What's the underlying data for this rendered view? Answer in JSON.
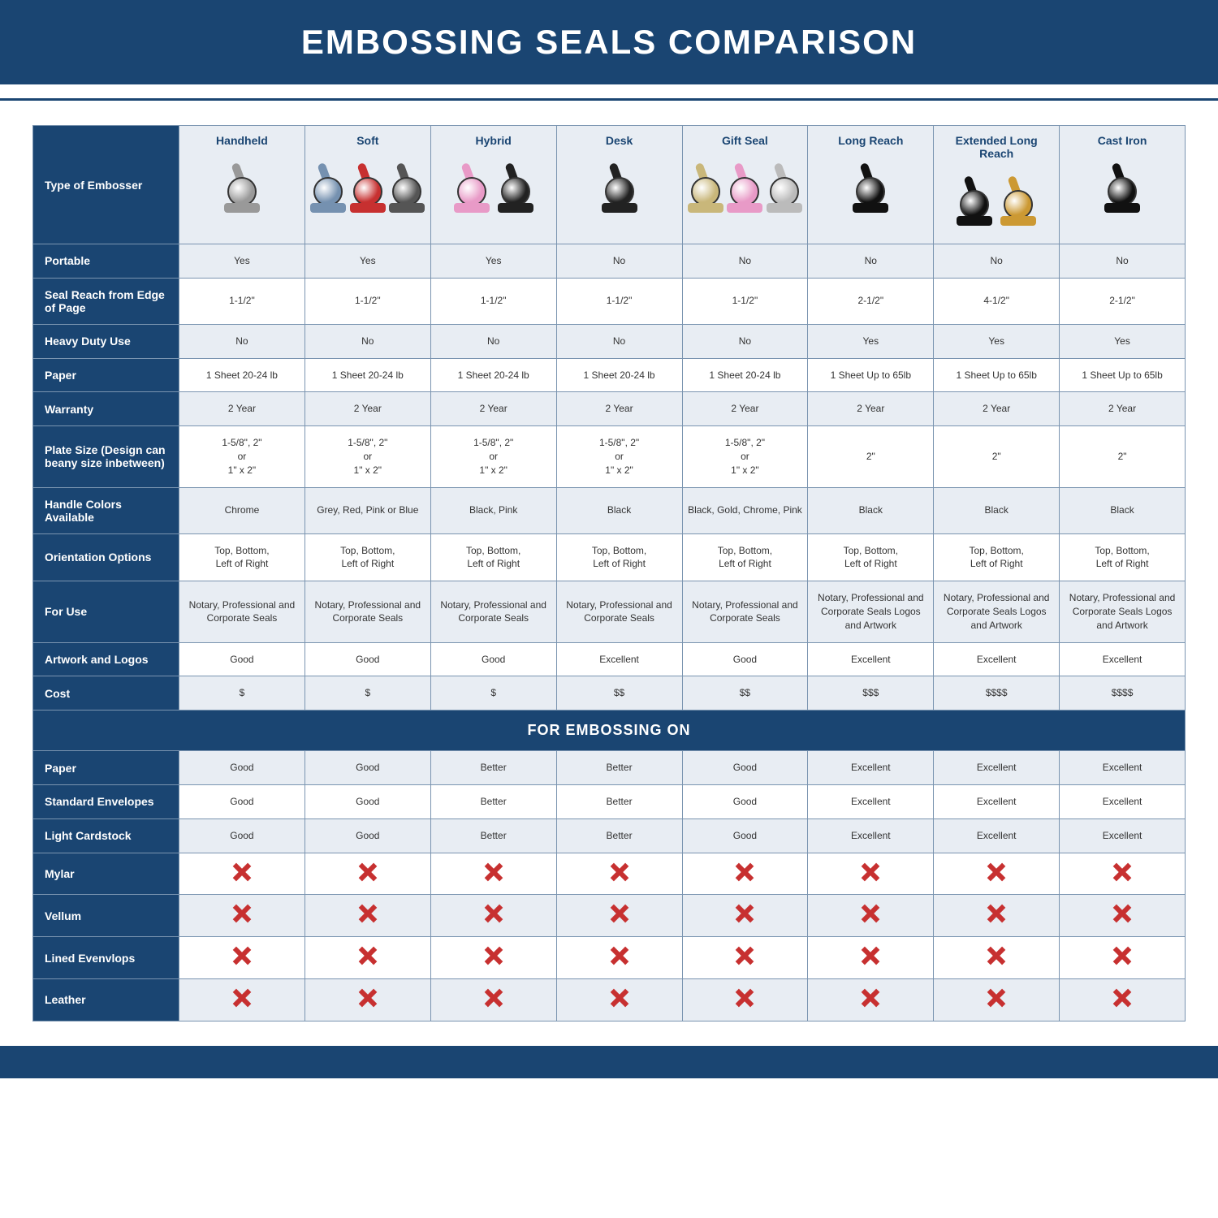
{
  "title": "EMBOSSING SEALS COMPARISON",
  "section_label": "FOR EMBOSSING ON",
  "colors": {
    "header_bg": "#1a4572",
    "header_text": "#ffffff",
    "band_a": "#e8edf3",
    "band_b": "#ffffff",
    "border": "#7a94b0",
    "text": "#333333",
    "x_color": "#c73030"
  },
  "row_header_label": "Type of Embosser",
  "columns": [
    {
      "label": "Handheld",
      "icons": [
        {
          "c": "#999999"
        }
      ]
    },
    {
      "label": "Soft",
      "icons": [
        {
          "c": "#7591b0"
        },
        {
          "c": "#c73030"
        },
        {
          "c": "#555555"
        }
      ]
    },
    {
      "label": "Hybrid",
      "icons": [
        {
          "c": "#e89ac7"
        },
        {
          "c": "#222222"
        }
      ]
    },
    {
      "label": "Desk",
      "icons": [
        {
          "c": "#222222"
        }
      ]
    },
    {
      "label": "Gift Seal",
      "icons": [
        {
          "c": "#c9b77a"
        },
        {
          "c": "#e89ac7"
        },
        {
          "c": "#bbbbbb"
        }
      ]
    },
    {
      "label": "Long Reach",
      "icons": [
        {
          "c": "#111111"
        }
      ]
    },
    {
      "label": "Extended Long Reach",
      "icons": [
        {
          "c": "#111111"
        },
        {
          "c": "#cc9933"
        }
      ]
    },
    {
      "label": "Cast Iron",
      "icons": [
        {
          "c": "#111111"
        }
      ]
    }
  ],
  "rows_top": [
    {
      "label": "Portable",
      "band": "a",
      "vals": [
        "Yes",
        "Yes",
        "Yes",
        "No",
        "No",
        "No",
        "No",
        "No"
      ]
    },
    {
      "label": "Seal Reach from Edge of Page",
      "band": "b",
      "vals": [
        "1-1/2\"",
        "1-1/2\"",
        "1-1/2\"",
        "1-1/2\"",
        "1-1/2\"",
        "2-1/2\"",
        "4-1/2\"",
        "2-1/2\""
      ]
    },
    {
      "label": "Heavy Duty Use",
      "band": "a",
      "vals": [
        "No",
        "No",
        "No",
        "No",
        "No",
        "Yes",
        "Yes",
        "Yes"
      ]
    },
    {
      "label": "Paper",
      "band": "b",
      "vals": [
        "1 Sheet 20-24 lb",
        "1 Sheet 20-24 lb",
        "1 Sheet 20-24 lb",
        "1 Sheet 20-24 lb",
        "1 Sheet 20-24 lb",
        "1 Sheet Up to 65lb",
        "1 Sheet Up to 65lb",
        "1 Sheet Up to 65lb"
      ]
    },
    {
      "label": "Warranty",
      "band": "a",
      "vals": [
        "2 Year",
        "2 Year",
        "2 Year",
        "2 Year",
        "2 Year",
        "2 Year",
        "2 Year",
        "2 Year"
      ]
    },
    {
      "label": "Plate Size (Design can beany size inbetween)",
      "band": "b",
      "vals": [
        "1-5/8\", 2\"\nor\n1\" x 2\"",
        "1-5/8\", 2\"\nor\n1\" x 2\"",
        "1-5/8\", 2\"\nor\n1\" x 2\"",
        "1-5/8\", 2\"\nor\n1\" x 2\"",
        "1-5/8\", 2\"\nor\n1\" x 2\"",
        "2\"",
        "2\"",
        "2\""
      ]
    },
    {
      "label": "Handle Colors Available",
      "band": "a",
      "vals": [
        "Chrome",
        "Grey, Red, Pink or Blue",
        "Black, Pink",
        "Black",
        "Black, Gold, Chrome, Pink",
        "Black",
        "Black",
        "Black"
      ]
    },
    {
      "label": "Orientation Options",
      "band": "b",
      "vals": [
        "Top, Bottom,\nLeft of Right",
        "Top, Bottom,\nLeft of Right",
        "Top, Bottom,\nLeft of Right",
        "Top, Bottom,\nLeft of Right",
        "Top, Bottom,\nLeft of Right",
        "Top, Bottom,\nLeft of Right",
        "Top, Bottom,\nLeft of Right",
        "Top, Bottom,\nLeft of Right"
      ]
    },
    {
      "label": "For Use",
      "band": "a",
      "vals": [
        "Notary, Professional and Corporate Seals",
        "Notary, Professional and Corporate Seals",
        "Notary, Professional and Corporate Seals",
        "Notary, Professional and Corporate Seals",
        "Notary, Professional and Corporate Seals",
        "Notary, Professional and Corporate Seals Logos and Artwork",
        "Notary, Professional and Corporate Seals Logos and Artwork",
        "Notary, Professional and Corporate Seals Logos and Artwork"
      ]
    },
    {
      "label": "Artwork and Logos",
      "band": "b",
      "vals": [
        "Good",
        "Good",
        "Good",
        "Excellent",
        "Good",
        "Excellent",
        "Excellent",
        "Excellent"
      ]
    },
    {
      "label": "Cost",
      "band": "a",
      "vals": [
        "$",
        "$",
        "$",
        "$$",
        "$$",
        "$$$",
        "$$$$",
        "$$$$"
      ]
    }
  ],
  "rows_bottom": [
    {
      "label": "Paper",
      "band": "a",
      "vals": [
        "Good",
        "Good",
        "Better",
        "Better",
        "Good",
        "Excellent",
        "Excellent",
        "Excellent"
      ]
    },
    {
      "label": "Standard Envelopes",
      "band": "b",
      "vals": [
        "Good",
        "Good",
        "Better",
        "Better",
        "Good",
        "Excellent",
        "Excellent",
        "Excellent"
      ]
    },
    {
      "label": "Light Cardstock",
      "band": "a",
      "vals": [
        "Good",
        "Good",
        "Better",
        "Better",
        "Good",
        "Excellent",
        "Excellent",
        "Excellent"
      ]
    },
    {
      "label": "Mylar",
      "band": "b",
      "vals": [
        "X",
        "X",
        "X",
        "X",
        "X",
        "X",
        "X",
        "X"
      ]
    },
    {
      "label": "Vellum",
      "band": "a",
      "vals": [
        "X",
        "X",
        "X",
        "X",
        "X",
        "X",
        "X",
        "X"
      ]
    },
    {
      "label": "Lined Evenvlops",
      "band": "b",
      "vals": [
        "X",
        "X",
        "X",
        "X",
        "X",
        "X",
        "X",
        "X"
      ]
    },
    {
      "label": "Leather",
      "band": "a",
      "vals": [
        "X",
        "X",
        "X",
        "X",
        "X",
        "X",
        "X",
        "X"
      ]
    }
  ]
}
